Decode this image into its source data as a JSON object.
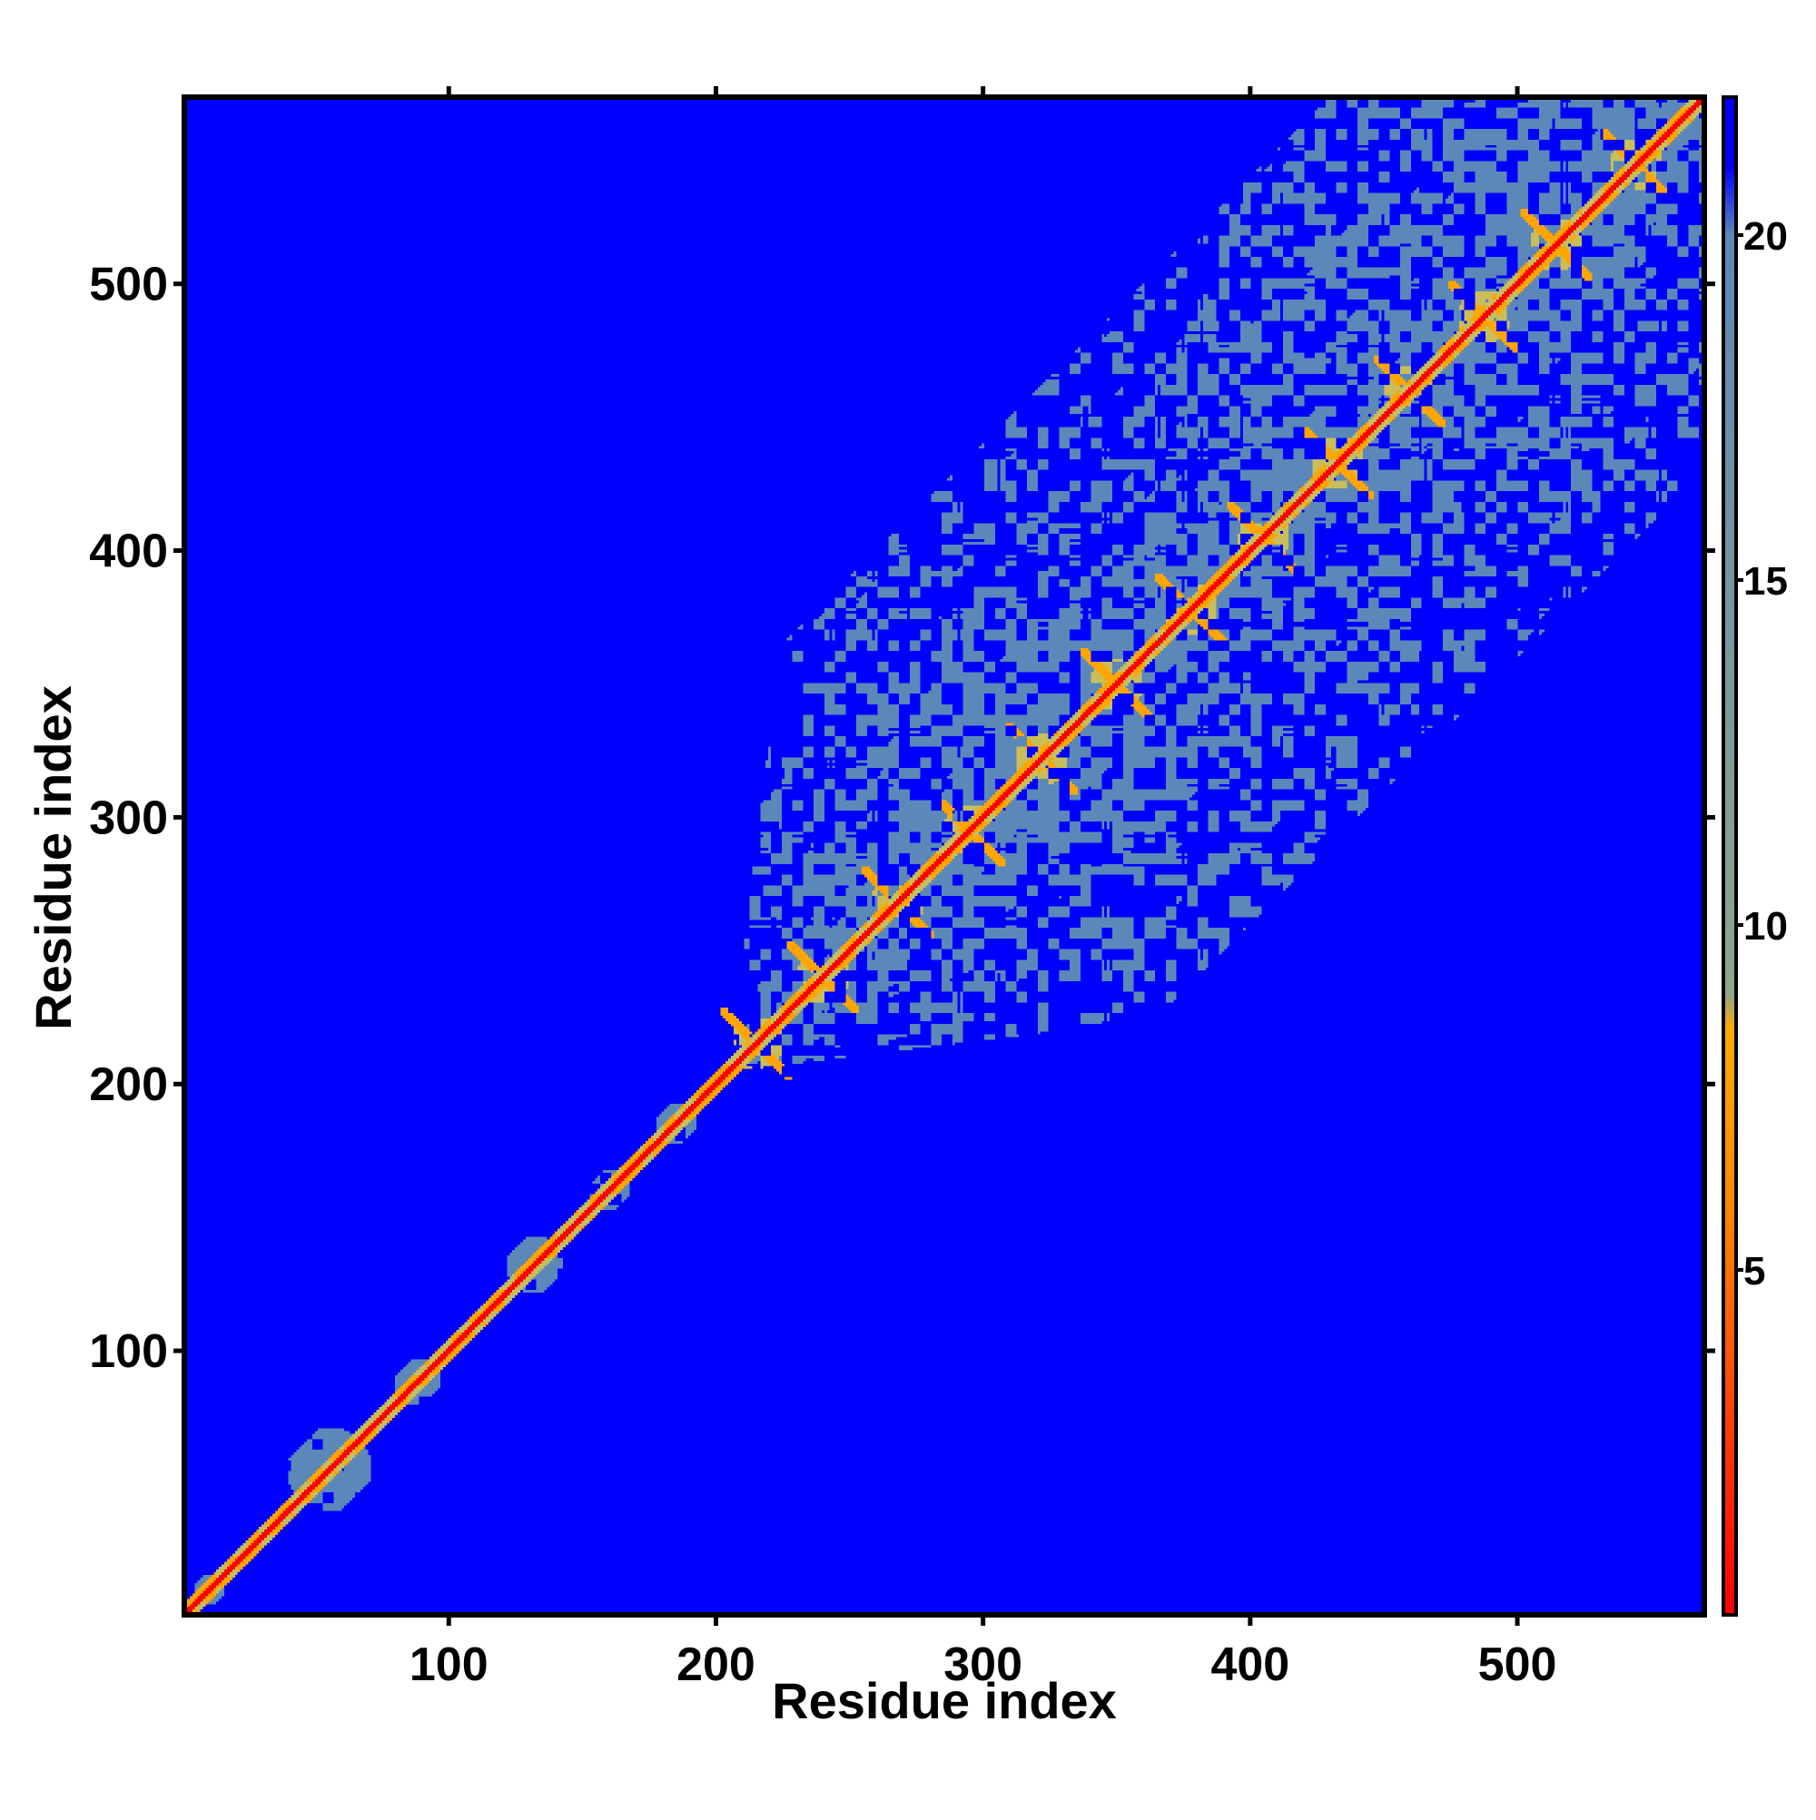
{
  "chart_data": {
    "type": "heatmap",
    "title": "",
    "xlabel": "Residue index",
    "ylabel": "Residue index",
    "xlim": [
      1,
      570
    ],
    "ylim": [
      1,
      570
    ],
    "x_ticks": [
      100,
      200,
      300,
      400,
      500
    ],
    "y_ticks": [
      100,
      200,
      300,
      400,
      500
    ],
    "colorbar": {
      "range": [
        0,
        22
      ],
      "ticks": [
        5,
        10,
        15,
        20
      ],
      "stops": [
        {
          "value": 0,
          "color": "#ff0000"
        },
        {
          "value": 6,
          "color": "#ff8800"
        },
        {
          "value": 8.5,
          "color": "#ffaa00"
        },
        {
          "value": 9,
          "color": "#8fa68a"
        },
        {
          "value": 20,
          "color": "#5b88b8"
        },
        {
          "value": 21,
          "color": "#0000ff"
        }
      ]
    },
    "background_color": "#0000ff",
    "diagonal_color": "#ff0000",
    "contact_color": "#5b88b8",
    "near_contact_color": "#ffa500",
    "pattern": {
      "compact_domains_along_diagonal": [
        {
          "center": 10,
          "radius": 6
        },
        {
          "center": 55,
          "radius": 16
        },
        {
          "center": 88,
          "radius": 9
        },
        {
          "center": 132,
          "radius": 11
        },
        {
          "center": 160,
          "radius": 8
        },
        {
          "center": 185,
          "radius": 8
        }
      ],
      "broad_contact_region": {
        "start": 205,
        "end": 570,
        "band_width": 140
      },
      "helix_repeat_centers": [
        215,
        240,
        268,
        295,
        322,
        350,
        378,
        405,
        433,
        460,
        488,
        515,
        545
      ]
    }
  }
}
